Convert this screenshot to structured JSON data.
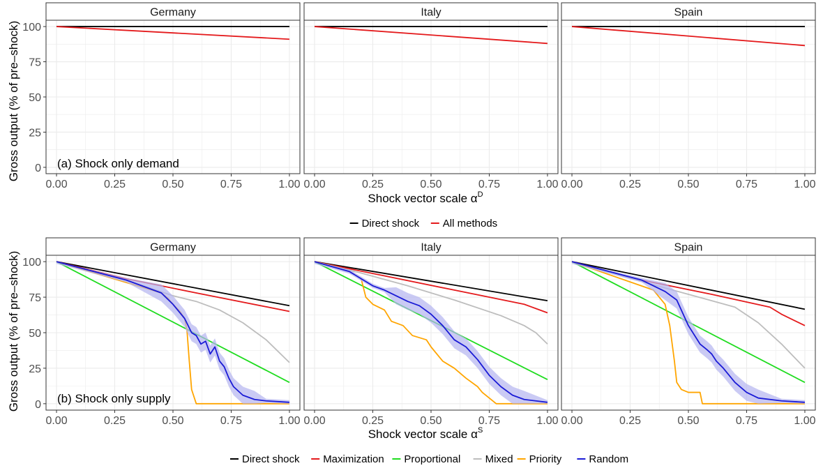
{
  "colors": {
    "direct": "#000000",
    "maximization": "#e41a1c",
    "proportional": "#1fdc1f",
    "mixed": "#bdbdbd",
    "priority": "#ffa500",
    "random": "#1a1ad6",
    "random_band": "#b3b3f0",
    "grid": "#ebebeb",
    "panel_border": "#333333",
    "strip_fill": "#ffffff"
  },
  "axis_titles": {
    "y": "Gross output (% of pre–shock)",
    "x_demand_prefix": "Shock vector scale α",
    "x_demand_sup": "D",
    "x_supply_prefix": "Shock vector scale α",
    "x_supply_sup": "S"
  },
  "countries": [
    "Germany",
    "Italy",
    "Spain"
  ],
  "annotations": {
    "demand": "(a) Shock only demand",
    "supply": "(b) Shock only supply"
  },
  "legend_demand": [
    {
      "label": "Direct shock",
      "color_key": "direct"
    },
    {
      "label": "All methods",
      "color_key": "maximization"
    }
  ],
  "legend_supply": [
    {
      "label": "Direct shock",
      "color_key": "direct"
    },
    {
      "label": "Maximization",
      "color_key": "maximization"
    },
    {
      "label": "Proportional",
      "color_key": "proportional"
    },
    {
      "label": "Mixed",
      "color_key": "mixed"
    },
    {
      "label": "Priority",
      "color_key": "priority"
    },
    {
      "label": "Random",
      "color_key": "random"
    }
  ],
  "chart_data": [
    {
      "type": "line",
      "row": "demand",
      "xlim": [
        0,
        1
      ],
      "ylim": [
        0,
        100
      ],
      "x_ticks": [
        "0.00",
        "0.25",
        "0.50",
        "0.75",
        "1.00"
      ],
      "y_ticks": [
        "0",
        "25",
        "50",
        "75",
        "100"
      ],
      "panels": [
        {
          "country": "Germany",
          "series": [
            {
              "name": "Direct shock",
              "color_key": "direct",
              "points": [
                [
                  0,
                  100
                ],
                [
                  1,
                  100
                ]
              ]
            },
            {
              "name": "All methods",
              "color_key": "maximization",
              "points": [
                [
                  0,
                  100
                ],
                [
                  1,
                  91
                ]
              ]
            }
          ]
        },
        {
          "country": "Italy",
          "series": [
            {
              "name": "Direct shock",
              "color_key": "direct",
              "points": [
                [
                  0,
                  100
                ],
                [
                  1,
                  100
                ]
              ]
            },
            {
              "name": "All methods",
              "color_key": "maximization",
              "points": [
                [
                  0,
                  100
                ],
                [
                  1,
                  88
                ]
              ]
            }
          ]
        },
        {
          "country": "Spain",
          "series": [
            {
              "name": "Direct shock",
              "color_key": "direct",
              "points": [
                [
                  0,
                  100
                ],
                [
                  1,
                  100
                ]
              ]
            },
            {
              "name": "All methods",
              "color_key": "maximization",
              "points": [
                [
                  0,
                  100
                ],
                [
                  1,
                  86.5
                ]
              ]
            }
          ]
        }
      ]
    },
    {
      "type": "line",
      "row": "supply",
      "xlim": [
        0,
        1
      ],
      "ylim": [
        0,
        100
      ],
      "x_ticks": [
        "0.00",
        "0.25",
        "0.50",
        "0.75",
        "1.00"
      ],
      "y_ticks": [
        "0",
        "25",
        "50",
        "75",
        "100"
      ],
      "panels": [
        {
          "country": "Germany",
          "series": [
            {
              "name": "Direct shock",
              "color_key": "direct",
              "points": [
                [
                  0,
                  100
                ],
                [
                  1,
                  69
                ]
              ]
            },
            {
              "name": "Maximization",
              "color_key": "maximization",
              "points": [
                [
                  0,
                  100
                ],
                [
                  0.3,
                  88
                ],
                [
                  0.6,
                  78
                ],
                [
                  1,
                  65
                ]
              ]
            },
            {
              "name": "Proportional",
              "color_key": "proportional",
              "points": [
                [
                  0,
                  100
                ],
                [
                  1,
                  15
                ]
              ]
            },
            {
              "name": "Mixed",
              "color_key": "mixed",
              "points": [
                [
                  0,
                  100
                ],
                [
                  0.3,
                  87
                ],
                [
                  0.5,
                  76
                ],
                [
                  0.6,
                  72
                ],
                [
                  0.7,
                  66
                ],
                [
                  0.8,
                  57
                ],
                [
                  0.9,
                  45
                ],
                [
                  1,
                  29
                ]
              ]
            },
            {
              "name": "Priority",
              "color_key": "priority",
              "points": [
                [
                  0,
                  100
                ],
                [
                  0.45,
                  78
                ],
                [
                  0.48,
                  74
                ],
                [
                  0.5,
                  70
                ],
                [
                  0.53,
                  65
                ],
                [
                  0.55,
                  60
                ],
                [
                  0.56,
                  52
                ],
                [
                  0.57,
                  30
                ],
                [
                  0.58,
                  10
                ],
                [
                  0.6,
                  0
                ],
                [
                  1,
                  0
                ]
              ]
            },
            {
              "name": "Random",
              "color_key": "random",
              "points": [
                [
                  0,
                  100
                ],
                [
                  0.3,
                  87
                ],
                [
                  0.45,
                  78
                ],
                [
                  0.5,
                  70
                ],
                [
                  0.55,
                  60
                ],
                [
                  0.58,
                  50
                ],
                [
                  0.6,
                  48
                ],
                [
                  0.62,
                  42
                ],
                [
                  0.64,
                  44
                ],
                [
                  0.66,
                  35
                ],
                [
                  0.68,
                  40
                ],
                [
                  0.7,
                  30
                ],
                [
                  0.72,
                  26
                ],
                [
                  0.74,
                  18
                ],
                [
                  0.76,
                  12
                ],
                [
                  0.8,
                  6
                ],
                [
                  0.85,
                  3
                ],
                [
                  0.9,
                  2
                ],
                [
                  1,
                  1
                ]
              ]
            }
          ]
        },
        {
          "country": "Italy",
          "series": [
            {
              "name": "Direct shock",
              "color_key": "direct",
              "points": [
                [
                  0,
                  100
                ],
                [
                  1,
                  72.5
                ]
              ]
            },
            {
              "name": "Maximization",
              "color_key": "maximization",
              "points": [
                [
                  0,
                  100
                ],
                [
                  0.3,
                  90
                ],
                [
                  0.6,
                  80
                ],
                [
                  0.9,
                  70
                ],
                [
                  0.95,
                  67
                ],
                [
                  1,
                  64
                ]
              ]
            },
            {
              "name": "Proportional",
              "color_key": "proportional",
              "points": [
                [
                  0,
                  100
                ],
                [
                  1,
                  17
                ]
              ]
            },
            {
              "name": "Mixed",
              "color_key": "mixed",
              "points": [
                [
                  0,
                  100
                ],
                [
                  0.2,
                  92
                ],
                [
                  0.4,
                  83
                ],
                [
                  0.6,
                  73
                ],
                [
                  0.8,
                  62
                ],
                [
                  0.9,
                  55
                ],
                [
                  0.95,
                  50
                ],
                [
                  1,
                  42
                ]
              ]
            },
            {
              "name": "Priority",
              "color_key": "priority",
              "points": [
                [
                  0,
                  100
                ],
                [
                  0.15,
                  93
                ],
                [
                  0.2,
                  88
                ],
                [
                  0.22,
                  75
                ],
                [
                  0.25,
                  70
                ],
                [
                  0.3,
                  66
                ],
                [
                  0.33,
                  58
                ],
                [
                  0.38,
                  55
                ],
                [
                  0.42,
                  48
                ],
                [
                  0.48,
                  45
                ],
                [
                  0.5,
                  40
                ],
                [
                  0.55,
                  30
                ],
                [
                  0.6,
                  25
                ],
                [
                  0.65,
                  18
                ],
                [
                  0.7,
                  12
                ],
                [
                  0.72,
                  8
                ],
                [
                  0.75,
                  4
                ],
                [
                  0.78,
                  0
                ],
                [
                  1,
                  0
                ]
              ]
            },
            {
              "name": "Random",
              "color_key": "random",
              "points": [
                [
                  0,
                  100
                ],
                [
                  0.15,
                  93
                ],
                [
                  0.2,
                  88
                ],
                [
                  0.25,
                  83
                ],
                [
                  0.3,
                  80
                ],
                [
                  0.35,
                  76
                ],
                [
                  0.4,
                  72
                ],
                [
                  0.45,
                  69
                ],
                [
                  0.5,
                  63
                ],
                [
                  0.55,
                  55
                ],
                [
                  0.6,
                  45
                ],
                [
                  0.65,
                  40
                ],
                [
                  0.7,
                  31
                ],
                [
                  0.75,
                  20
                ],
                [
                  0.8,
                  12
                ],
                [
                  0.85,
                  6
                ],
                [
                  0.9,
                  3
                ],
                [
                  1,
                  1
                ]
              ]
            }
          ]
        },
        {
          "country": "Spain",
          "series": [
            {
              "name": "Direct shock",
              "color_key": "direct",
              "points": [
                [
                  0,
                  100
                ],
                [
                  1,
                  66.5
                ]
              ]
            },
            {
              "name": "Maximization",
              "color_key": "maximization",
              "points": [
                [
                  0,
                  100
                ],
                [
                  0.3,
                  87
                ],
                [
                  0.6,
                  77
                ],
                [
                  0.85,
                  68
                ],
                [
                  0.9,
                  63
                ],
                [
                  1,
                  55
                ]
              ]
            },
            {
              "name": "Proportional",
              "color_key": "proportional",
              "points": [
                [
                  0,
                  100
                ],
                [
                  1,
                  15
                ]
              ]
            },
            {
              "name": "Mixed",
              "color_key": "mixed",
              "points": [
                [
                  0,
                  100
                ],
                [
                  0.3,
                  86
                ],
                [
                  0.5,
                  77
                ],
                [
                  0.7,
                  68
                ],
                [
                  0.8,
                  57
                ],
                [
                  0.9,
                  42
                ],
                [
                  1,
                  25
                ]
              ]
            },
            {
              "name": "Priority",
              "color_key": "priority",
              "points": [
                [
                  0,
                  100
                ],
                [
                  0.35,
                  80
                ],
                [
                  0.4,
                  70
                ],
                [
                  0.42,
                  55
                ],
                [
                  0.44,
                  30
                ],
                [
                  0.45,
                  15
                ],
                [
                  0.47,
                  10
                ],
                [
                  0.5,
                  8
                ],
                [
                  0.55,
                  8
                ],
                [
                  0.56,
                  0
                ],
                [
                  1,
                  0
                ]
              ]
            },
            {
              "name": "Random",
              "color_key": "random",
              "points": [
                [
                  0,
                  100
                ],
                [
                  0.3,
                  87
                ],
                [
                  0.4,
                  79
                ],
                [
                  0.45,
                  73
                ],
                [
                  0.5,
                  55
                ],
                [
                  0.55,
                  42
                ],
                [
                  0.58,
                  38
                ],
                [
                  0.6,
                  35
                ],
                [
                  0.62,
                  30
                ],
                [
                  0.65,
                  25
                ],
                [
                  0.7,
                  15
                ],
                [
                  0.75,
                  8
                ],
                [
                  0.8,
                  4
                ],
                [
                  0.9,
                  2
                ],
                [
                  1,
                  1
                ]
              ]
            }
          ]
        }
      ]
    }
  ]
}
